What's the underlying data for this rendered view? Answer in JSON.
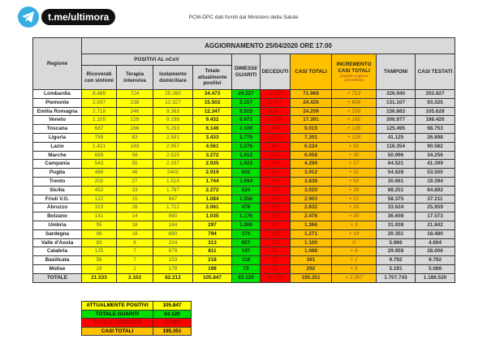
{
  "logo": {
    "text": "t.me/ultimora",
    "icon": "telegram-icon"
  },
  "source": "PCM-DPC dati forniti dal Ministero della Salute",
  "table": {
    "title": "AGGIORNAMENTO 25/04/2020 ORE 17.00",
    "headers": {
      "regione": "Regione",
      "positivi_group": "POSITIVI AL nCoV",
      "ricoverati": "Ricoverati con sintomi",
      "terapia": "Terapia intensiva",
      "isolamento": "Isolamento domiciliare",
      "totale_positivi": "Totale attualmente positivi",
      "dimessi": "DIMESSI/ GUARITI",
      "deceduti": "DECEDUTI",
      "casi_totali": "CASI TOTALI",
      "incremento": "INCREMENTO CASI TOTALI",
      "incremento_note": "(rispetto al giorno precedente)",
      "tamponi": "TAMPONI",
      "casi_testati": "CASI TESTATI"
    },
    "rows": [
      [
        "Lombardia",
        "8.489",
        "724",
        "25.260",
        "34.473",
        "24.227",
        "13.269",
        "71.969",
        "+ 713",
        "326.940",
        "202.827"
      ],
      [
        "Piemonte",
        "2.937",
        "238",
        "12.327",
        "15.502",
        "6.157",
        "2.767",
        "24.426",
        "+ 604",
        "131.107",
        "93.325"
      ],
      [
        "Emilia Romagna",
        "2.718",
        "246",
        "9.383",
        "12.347",
        "8.515",
        "3.347",
        "24.209",
        "+ 239",
        "156.883",
        "105.628"
      ],
      [
        "Veneto",
        "1.105",
        "129",
        "8.198",
        "9.432",
        "6.671",
        "1.288",
        "17.391",
        "+ 162",
        "306.977",
        "186.426"
      ],
      [
        "Toscana",
        "687",
        "166",
        "5.293",
        "6.146",
        "2.109",
        "760",
        "9.015",
        "+ 138",
        "125.495",
        "98.753"
      ],
      [
        "Liguria",
        "759",
        "83",
        "2.591",
        "3.433",
        "2.775",
        "1.093",
        "7.301",
        "+ 128",
        "41.125",
        "26.898"
      ],
      [
        "Lazio",
        "1.421",
        "183",
        "2.957",
        "4.561",
        "1.276",
        "387",
        "6.224",
        "+ 92",
        "118.354",
        "90.582"
      ],
      [
        "Marche",
        "689",
        "58",
        "2.525",
        "3.272",
        "1.912",
        "874",
        "6.058",
        "+ 30",
        "50.996",
        "34.256"
      ],
      [
        "Campania",
        "543",
        "55",
        "2.337",
        "2.935",
        "1.023",
        "341",
        "4.299",
        "+ 17",
        "64.521",
        "41.399"
      ],
      [
        "Puglia",
        "469",
        "48",
        "2402",
        "2.919",
        "602",
        "391",
        "3.912",
        "+ 31",
        "54.628",
        "53.500"
      ],
      [
        "Trento",
        "202",
        "27",
        "1.515",
        "1.744",
        "1.694",
        "400",
        "3.838",
        "+ 62",
        "30.661",
        "19.394"
      ],
      [
        "Sicilia",
        "452",
        "33",
        "1.787",
        "2.272",
        "524",
        "224",
        "3.020",
        "+ 39",
        "68.251",
        "64.892"
      ],
      [
        "Friuli V.G.",
        "122",
        "15",
        "947",
        "1.084",
        "1.556",
        "263",
        "2.903",
        "+ 21",
        "58.375",
        "37.211"
      ],
      [
        "Abruzzo",
        "323",
        "26",
        "1.712",
        "2.061",
        "478",
        "293",
        "2.832",
        "+ 29",
        "33.624",
        "25.959"
      ],
      [
        "Bolzano",
        "141",
        "14",
        "880",
        "1.035",
        "1.176",
        "265",
        "2.476",
        "+ 20",
        "36.608",
        "17.573"
      ],
      [
        "Umbria",
        "95",
        "18",
        "184",
        "297",
        "1.006",
        "63",
        "1.366",
        "+ 3",
        "31.939",
        "21.842"
      ],
      [
        "Sardegna",
        "96",
        "18",
        "680",
        "794",
        "374",
        "103",
        "1.271",
        "+ 14",
        "20.351",
        "18.480"
      ],
      [
        "Valle d'Aosta",
        "83",
        "6",
        "224",
        "313",
        "657",
        "130",
        "1.100",
        "0",
        "5.966",
        "4.694"
      ],
      [
        "Calabria",
        "125",
        "7",
        "679",
        "811",
        "197",
        "80",
        "1.088",
        "+ 9",
        "29.959",
        "28.006"
      ],
      [
        "Basilicata",
        "58",
        "7",
        "153",
        "218",
        "118",
        "25",
        "361",
        "+ 1",
        "9.792",
        "9.792"
      ],
      [
        "Molise",
        "19",
        "1",
        "178",
        "198",
        "73",
        "21",
        "292",
        "+ 5",
        "5.191",
        "5.089"
      ]
    ],
    "total": [
      "TOTALE",
      "21.533",
      "2.102",
      "82.212",
      "105.847",
      "63.120",
      "26.384",
      "195.351",
      "+ 2.357",
      "1.707.743",
      "1.186.526"
    ]
  },
  "summary": [
    {
      "label": "ATTUALMENTE POSITIVI",
      "value": "105.847",
      "color": "#ffff00"
    },
    {
      "label": "TOTALE GUARITI",
      "value": "63.120",
      "color": "#00e000"
    },
    {
      "label": "TOTALE DECEDUTI",
      "value": "26.384",
      "color": "#ff0000"
    },
    {
      "label": "CASI TOTALI",
      "value": "195.351",
      "color": "#ffc000"
    }
  ]
}
